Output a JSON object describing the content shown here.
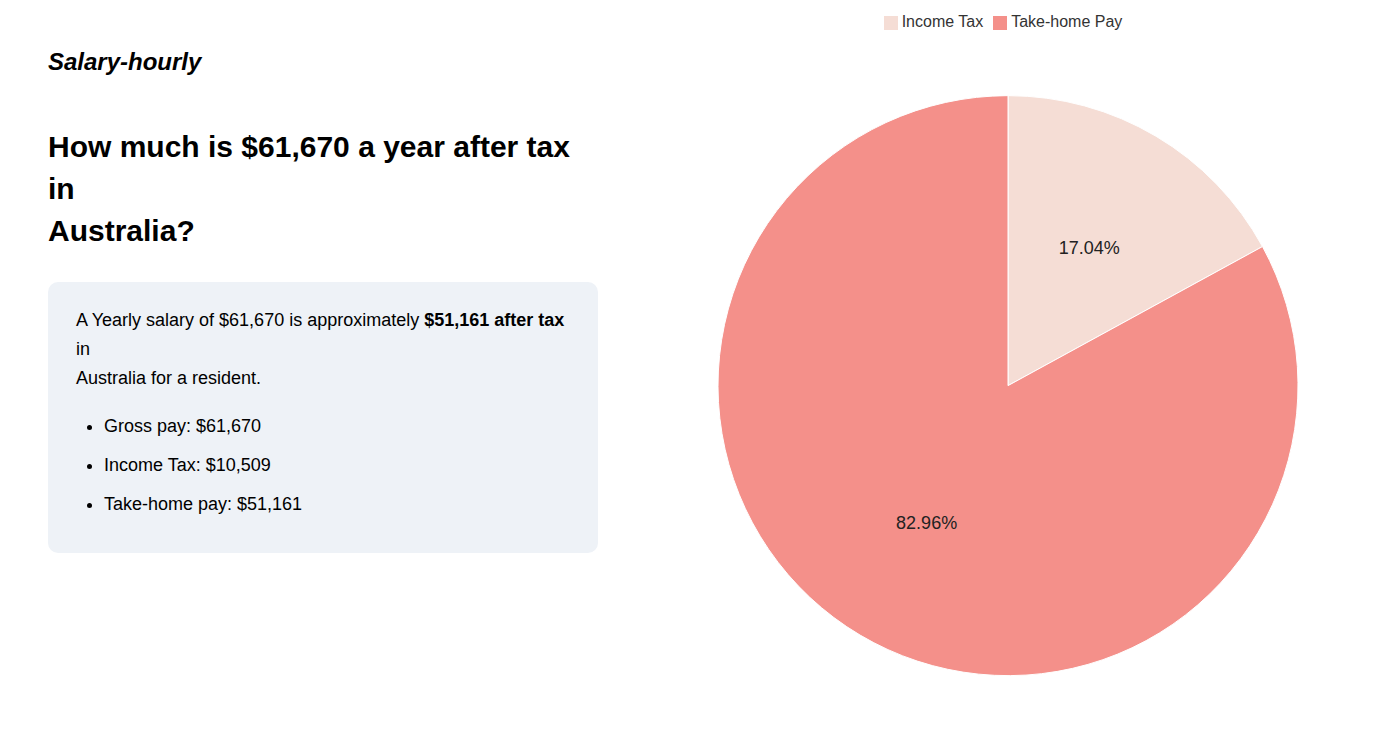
{
  "chart_data": {
    "type": "pie",
    "title": [
      "How much is $61,670 a year after tax in",
      "Australia?"
    ],
    "annotations": [
      "Salary-hourly",
      "A Yearly salary of $61,670 is approximately ",
      "$51,161 after tax",
      " in",
      "Australia for a resident.",
      "Gross pay: $61,670",
      "Income Tax: $10,509",
      "Take-home pay: $51,161"
    ],
    "categories": [
      "Income Tax",
      "Take-home Pay"
    ],
    "values": [
      17.04,
      82.96
    ],
    "value_labels": [
      "17.04%",
      "82.96%"
    ],
    "colors": [
      "#f5ddd5",
      "#f4908a"
    ],
    "data_labels": true,
    "legend": "top"
  }
}
